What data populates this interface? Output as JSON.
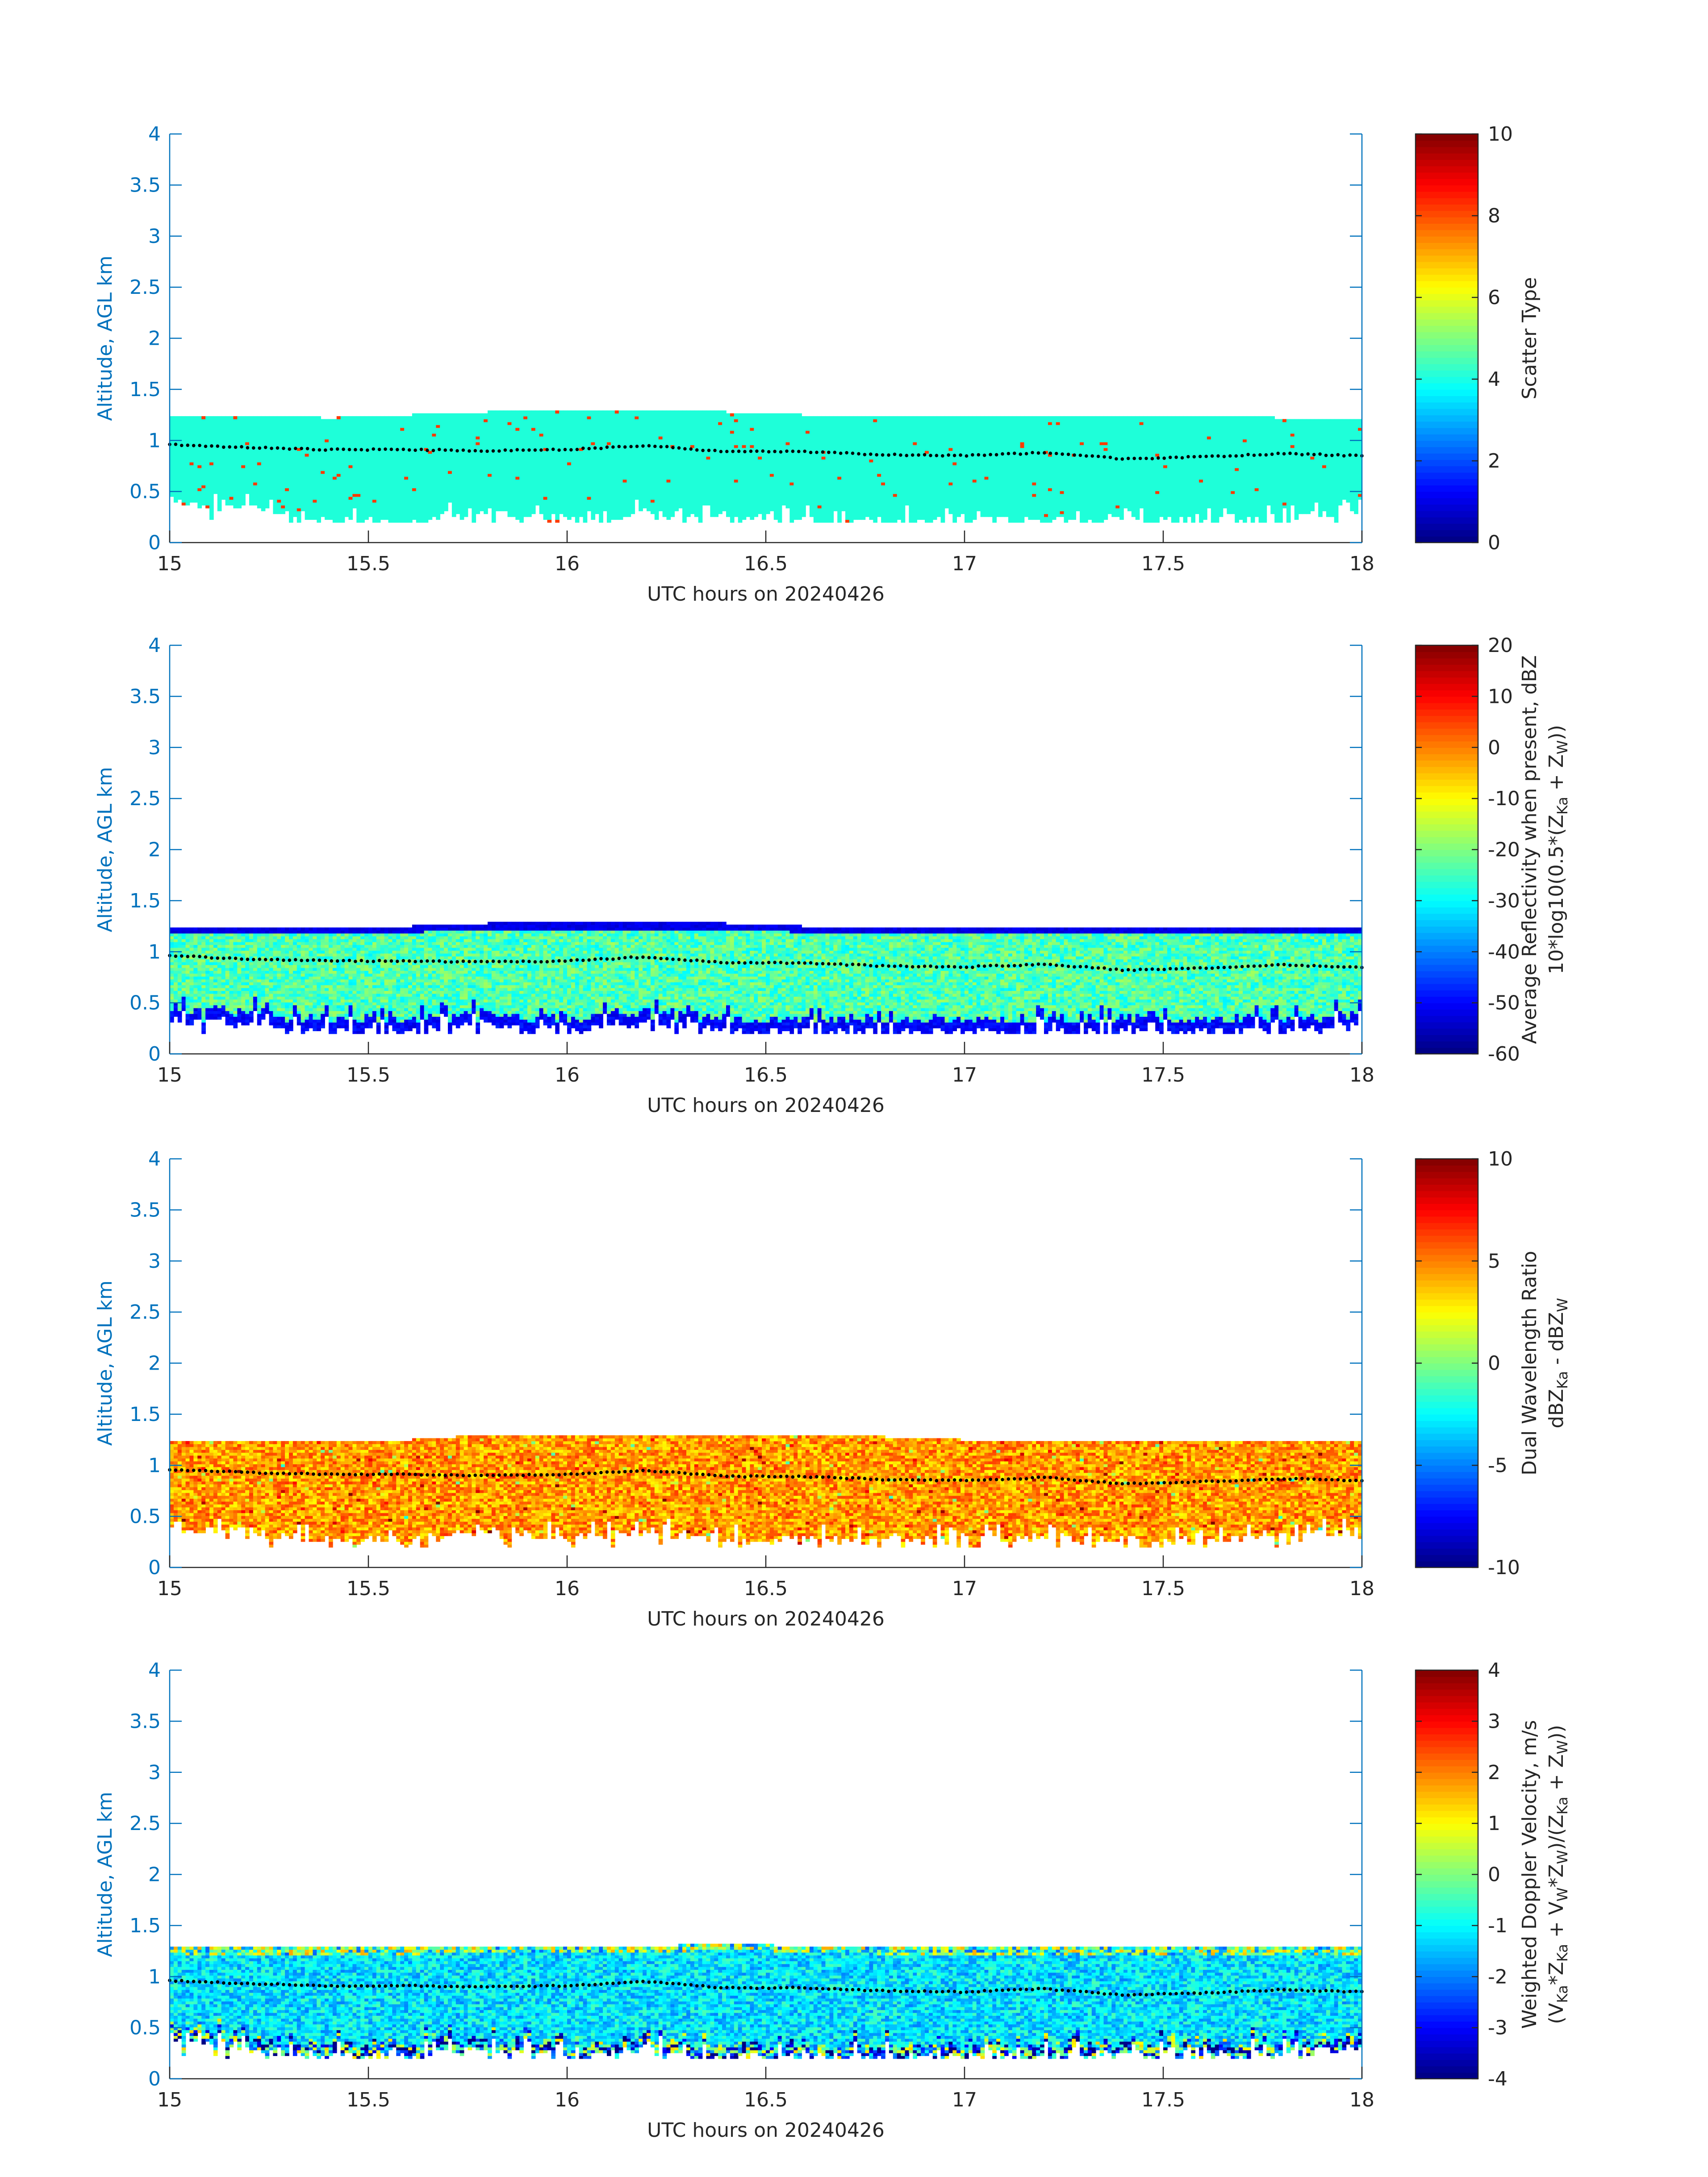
{
  "chart_data": [
    {
      "type": "heatmap",
      "xlabel": "UTC hours on 20240426",
      "ylabel": "Altitude, AGL km",
      "xlim": [
        15,
        18
      ],
      "ylim": [
        0,
        4
      ],
      "x_ticks": [
        "15",
        "15.5",
        "16",
        "16.5",
        "17",
        "17.5",
        "18"
      ],
      "y_ticks": [
        "0",
        "0.5",
        "1",
        "1.5",
        "2",
        "2.5",
        "3",
        "3.5",
        "4"
      ],
      "colorbar_label": [
        "Scatter Type"
      ],
      "colorbar_ticks": [
        "0",
        "2",
        "4",
        "6",
        "8",
        "10"
      ],
      "clim": [
        0,
        10
      ],
      "colormap": "jet",
      "field": {
        "dominant_value": 3.8,
        "dominant_color": "#1effd9",
        "sparse_value": 8.6,
        "sparse_color": "#ff3a00"
      },
      "echo_top_km": [
        1.25,
        1.25,
        1.22,
        1.25,
        1.28,
        1.28,
        1.28,
        1.28,
        1.25,
        1.25,
        1.25,
        1.25,
        1.25,
        1.25,
        1.22,
        1.22
      ],
      "echo_base_km": [
        0.4,
        0.35,
        0.22,
        0.22,
        0.3,
        0.22,
        0.3,
        0.22,
        0.22,
        0.22,
        0.22,
        0.22,
        0.22,
        0.22,
        0.25,
        0.3
      ],
      "cloud_base_line_km": {
        "x": [
          15,
          15.2,
          15.4,
          15.6,
          15.8,
          16,
          16.2,
          16.4,
          16.6,
          16.8,
          17,
          17.2,
          17.4,
          17.6,
          17.8,
          18
        ],
        "y": [
          0.96,
          0.93,
          0.91,
          0.91,
          0.9,
          0.91,
          0.95,
          0.89,
          0.89,
          0.86,
          0.85,
          0.88,
          0.82,
          0.84,
          0.87,
          0.85
        ]
      }
    },
    {
      "type": "heatmap",
      "xlabel": "UTC hours on 20240426",
      "ylabel": "Altitude, AGL km",
      "xlim": [
        15,
        18
      ],
      "ylim": [
        0,
        4
      ],
      "x_ticks": [
        "15",
        "15.5",
        "16",
        "16.5",
        "17",
        "17.5",
        "18"
      ],
      "y_ticks": [
        "0",
        "0.5",
        "1",
        "1.5",
        "2",
        "2.5",
        "3",
        "3.5",
        "4"
      ],
      "colorbar_label": [
        "Average Reflectivity when present, dBZ",
        "10*log10(0.5*(Z",
        "Ka",
        " + Z",
        "W",
        "))"
      ],
      "colorbar_ticks": [
        "-60",
        "-50",
        "-40",
        "-30",
        "-20",
        "-10",
        "0",
        "10",
        "20"
      ],
      "clim": [
        -60,
        20
      ],
      "colormap": "jet",
      "field": {
        "top_value": -52,
        "interior_value": -24,
        "base_value": -50
      },
      "echo_top_km": [
        1.25,
        1.25,
        1.25,
        1.25,
        1.28,
        1.28,
        1.28,
        1.28,
        1.25,
        1.25,
        1.25,
        1.25,
        1.25,
        1.25,
        1.25,
        1.25
      ],
      "echo_base_km": [
        0.35,
        0.3,
        0.22,
        0.22,
        0.3,
        0.22,
        0.3,
        0.22,
        0.22,
        0.22,
        0.22,
        0.22,
        0.22,
        0.22,
        0.22,
        0.3
      ],
      "cloud_base_line_km": {
        "x": [
          15,
          15.2,
          15.4,
          15.6,
          15.8,
          16,
          16.2,
          16.4,
          16.6,
          16.8,
          17,
          17.2,
          17.4,
          17.6,
          17.8,
          18
        ],
        "y": [
          0.96,
          0.93,
          0.91,
          0.91,
          0.9,
          0.91,
          0.95,
          0.89,
          0.89,
          0.86,
          0.85,
          0.88,
          0.82,
          0.84,
          0.87,
          0.85
        ]
      }
    },
    {
      "type": "heatmap",
      "xlabel": "UTC hours on 20240426",
      "ylabel": "Altitude, AGL km",
      "xlim": [
        15,
        18
      ],
      "ylim": [
        0,
        4
      ],
      "x_ticks": [
        "15",
        "15.5",
        "16",
        "16.5",
        "17",
        "17.5",
        "18"
      ],
      "y_ticks": [
        "0",
        "0.5",
        "1",
        "1.5",
        "2",
        "2.5",
        "3",
        "3.5",
        "4"
      ],
      "colorbar_label": [
        "Dual Wavelength Ratio",
        "dBZ",
        "Ka",
        " - dBZ",
        "W"
      ],
      "colorbar_ticks": [
        "-10",
        "-5",
        "0",
        "5",
        "10"
      ],
      "clim": [
        -10,
        10
      ],
      "colormap": "jet",
      "field": {
        "typical_value": 4.5,
        "range": [
          2,
          9
        ]
      },
      "echo_top_km": [
        1.25,
        1.25,
        1.25,
        1.25,
        1.3,
        1.3,
        1.3,
        1.3,
        1.28,
        1.28,
        1.25,
        1.25,
        1.25,
        1.25,
        1.25,
        1.25
      ],
      "echo_base_km": [
        0.4,
        0.35,
        0.28,
        0.28,
        0.35,
        0.28,
        0.35,
        0.28,
        0.28,
        0.28,
        0.28,
        0.28,
        0.28,
        0.28,
        0.3,
        0.35
      ],
      "cloud_base_line_km": {
        "x": [
          15,
          15.2,
          15.4,
          15.6,
          15.8,
          16,
          16.2,
          16.4,
          16.6,
          16.8,
          17,
          17.2,
          17.4,
          17.6,
          17.8,
          18
        ],
        "y": [
          0.96,
          0.93,
          0.91,
          0.91,
          0.9,
          0.91,
          0.95,
          0.89,
          0.89,
          0.86,
          0.85,
          0.88,
          0.82,
          0.84,
          0.87,
          0.85
        ]
      }
    },
    {
      "type": "heatmap",
      "xlabel": "UTC hours on 20240426",
      "ylabel": "Altitude, AGL km",
      "xlim": [
        15,
        18
      ],
      "ylim": [
        0,
        4
      ],
      "x_ticks": [
        "15",
        "15.5",
        "16",
        "16.5",
        "17",
        "17.5",
        "18"
      ],
      "y_ticks": [
        "0",
        "0.5",
        "1",
        "1.5",
        "2",
        "2.5",
        "3",
        "3.5",
        "4"
      ],
      "colorbar_label": [
        "Weighted Doppler Velocity, m/s",
        "(V",
        "Ka",
        "*Z",
        "Ka",
        " + V",
        "W",
        "*Z",
        "W",
        ")/(Z",
        "Ka",
        " + Z",
        "W",
        "))"
      ],
      "colorbar_ticks": [
        "-4",
        "-3",
        "-2",
        "-1",
        "0",
        "1",
        "2",
        "3",
        "4"
      ],
      "clim": [
        -4,
        4
      ],
      "colormap": "jet",
      "field": {
        "top_value": -0.3,
        "interior_value": -1.2,
        "base_value": -1.6
      },
      "echo_top_km": [
        1.28,
        1.28,
        1.28,
        1.28,
        1.3,
        1.3,
        1.3,
        1.32,
        1.3,
        1.28,
        1.28,
        1.28,
        1.28,
        1.28,
        1.28,
        1.28
      ],
      "echo_base_km": [
        0.35,
        0.3,
        0.22,
        0.22,
        0.3,
        0.22,
        0.3,
        0.22,
        0.22,
        0.22,
        0.22,
        0.22,
        0.22,
        0.22,
        0.25,
        0.3
      ],
      "cloud_base_line_km": {
        "x": [
          15,
          15.2,
          15.4,
          15.6,
          15.8,
          16,
          16.2,
          16.4,
          16.6,
          16.8,
          17,
          17.2,
          17.4,
          17.6,
          17.8,
          18
        ],
        "y": [
          0.96,
          0.93,
          0.91,
          0.91,
          0.9,
          0.91,
          0.95,
          0.89,
          0.89,
          0.86,
          0.85,
          0.88,
          0.82,
          0.84,
          0.87,
          0.85
        ]
      }
    }
  ],
  "colors": {
    "axis": "#0072bd",
    "text": "#262626",
    "background": "#ffffff",
    "cloud_base_dots": "#000000"
  }
}
